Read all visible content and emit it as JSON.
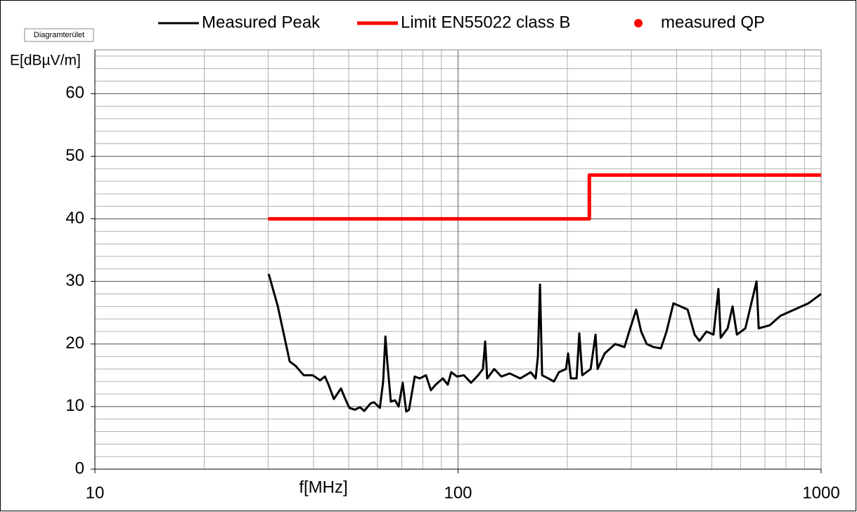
{
  "tooltip": "Diagramterület",
  "chart_data": {
    "type": "line",
    "xlabel": "f[MHz]",
    "ylabel": "E[dBµV/m]",
    "xscale": "log",
    "xlim": [
      10,
      1000
    ],
    "xticks": [
      10,
      100,
      1000
    ],
    "ylim": [
      0,
      67
    ],
    "yticks": [
      0,
      10,
      20,
      30,
      40,
      50,
      60
    ],
    "grid": true,
    "minor_grid": true,
    "legend": "top",
    "series": [
      {
        "name": "Measured Peak",
        "color": "#000000",
        "style": "line",
        "x": [
          30.1,
          31.9,
          33.3,
          34.4,
          35.7,
          37.6,
          39.8,
          41.7,
          43.0,
          44.0,
          45.5,
          47.6,
          48.7,
          50.2,
          52.0,
          53.7,
          55.2,
          57.4,
          58.7,
          60.9,
          62.2,
          63.1,
          63.9,
          65.3,
          67.1,
          68.6,
          70.4,
          72.0,
          73.3,
          76.0,
          78.4,
          81.6,
          84.2,
          86.8,
          90.8,
          93.7,
          95.8,
          99.3,
          103.8,
          108.6,
          113.6,
          117.1,
          118.8,
          120.3,
          125.8,
          131.6,
          138.8,
          148.4,
          158.6,
          163.6,
          165.9,
          168.2,
          170.4,
          177.4,
          183.7,
          189.6,
          198.3,
          201.0,
          204.5,
          212.0,
          215.8,
          219.8,
          231.8,
          239.2,
          242.3,
          253.4,
          271.0,
          287.2,
          296.1,
          309.5,
          319.4,
          330.9,
          346.0,
          362.0,
          375.2,
          392.0,
          409.8,
          428.8,
          448.3,
          462.3,
          483.3,
          505.4,
          521.3,
          528.8,
          552.8,
          570.2,
          586.1,
          618.5,
          664,
          673,
          722,
          772,
          844,
          922,
          1000
        ],
        "values": [
          31.2,
          26,
          21,
          17.2,
          16.5,
          15,
          15,
          14.2,
          14.8,
          13.5,
          11.2,
          12.9,
          11.5,
          9.8,
          9.5,
          9.9,
          9.3,
          10.5,
          10.7,
          9.8,
          14,
          21.2,
          17,
          10.8,
          11,
          10,
          13.8,
          9.2,
          9.5,
          14.8,
          14.5,
          15,
          12.6,
          13.5,
          14.5,
          13.5,
          15.5,
          14.8,
          15,
          13.8,
          15,
          16,
          20.4,
          14.5,
          16,
          14.8,
          15.3,
          14.5,
          15.5,
          14.5,
          18,
          29.5,
          15,
          14.5,
          14,
          15.5,
          16,
          18.5,
          14.5,
          14.5,
          21.7,
          15,
          16,
          21.5,
          16,
          18.5,
          20,
          19.5,
          22,
          25.5,
          22,
          20,
          19.5,
          19.3,
          22,
          26.5,
          26,
          25.5,
          21.5,
          20.5,
          22,
          21.5,
          28.8,
          21,
          22.5,
          26,
          21.5,
          22.5,
          30,
          22.5,
          23,
          24.5,
          25.5,
          26.5,
          28
        ]
      },
      {
        "name": "Limit EN55022 class B",
        "color": "#ff0000",
        "style": "line",
        "x": [
          30,
          230,
          230,
          1000
        ],
        "values": [
          40,
          40,
          47,
          47
        ]
      },
      {
        "name": "measured QP",
        "color": "#ff0000",
        "style": "marker",
        "x": [],
        "values": []
      }
    ]
  }
}
